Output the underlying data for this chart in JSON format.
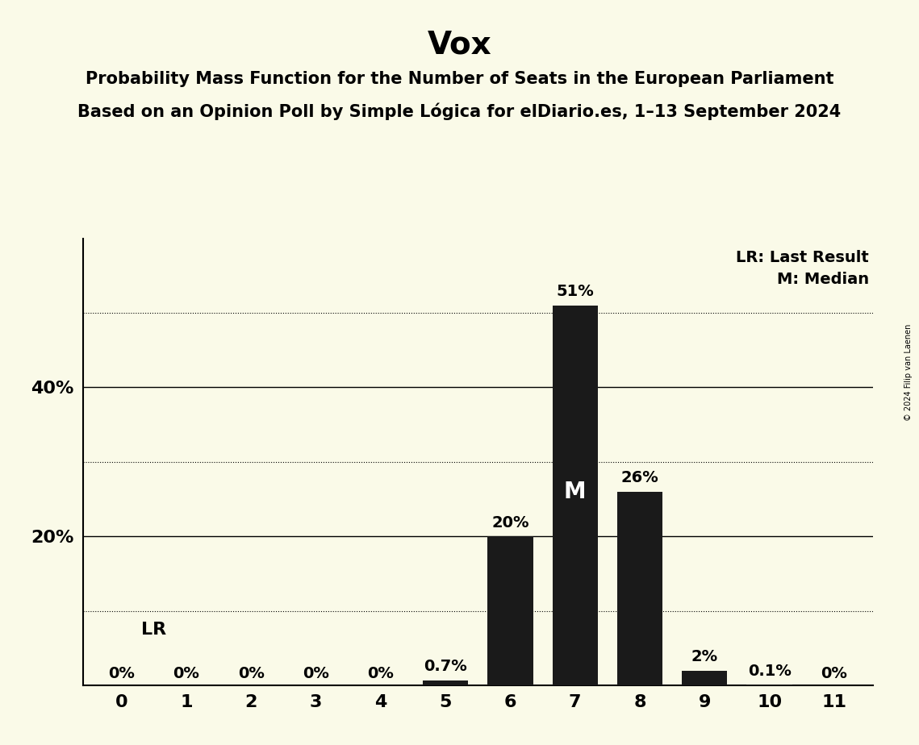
{
  "title": "Vox",
  "subtitle1": "Probability Mass Function for the Number of Seats in the European Parliament",
  "subtitle2": "Based on an Opinion Poll by Simple Lógica for elDiario.es, 1–13 September 2024",
  "copyright": "© 2024 Filip van Laenen",
  "categories": [
    0,
    1,
    2,
    3,
    4,
    5,
    6,
    7,
    8,
    9,
    10,
    11
  ],
  "values": [
    0.0,
    0.0,
    0.0,
    0.0,
    0.0,
    0.7,
    20.0,
    51.0,
    26.0,
    2.0,
    0.1,
    0.0
  ],
  "labels": [
    "0%",
    "0%",
    "0%",
    "0%",
    "0%",
    "0.7%",
    "20%",
    "51%",
    "26%",
    "2%",
    "0.1%",
    "0%"
  ],
  "bar_color": "#1a1a1a",
  "background_color": "#fafae8",
  "ylim_max": 60,
  "dotted_lines": [
    10,
    30,
    50
  ],
  "solid_lines": [
    20,
    40
  ],
  "last_result_seat": 3,
  "median_seat": 7,
  "legend_lr": "LR: Last Result",
  "legend_m": "M: Median",
  "lr_label": "LR",
  "m_label": "M",
  "title_fontsize": 28,
  "subtitle_fontsize": 15,
  "label_fontsize": 14,
  "axis_tick_fontsize": 16
}
